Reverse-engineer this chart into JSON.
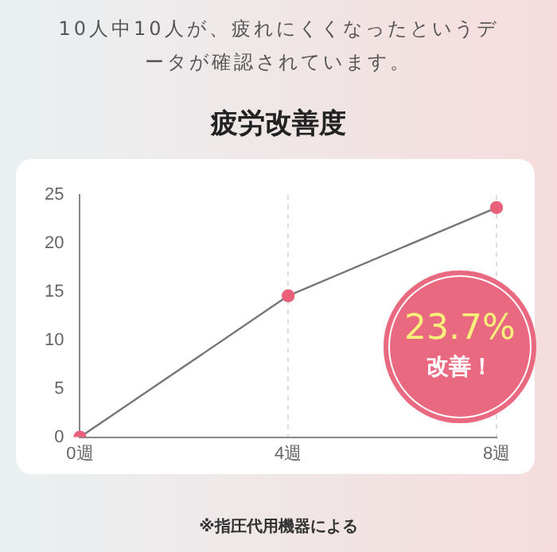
{
  "chart_data": {
    "type": "line",
    "title": "疲労改善度",
    "subtitle": "10人中10人が、疲れにくくなったというデータが確認されています。",
    "categories": [
      "0週",
      "4週",
      "8週"
    ],
    "series": [
      {
        "color": "#777777",
        "colors": [
          "#e8607a",
          "#e8607a",
          "#e8607a"
        ],
        "values": [
          0,
          14.6,
          23.7
        ]
      }
    ],
    "ylim": [
      0,
      25
    ],
    "yticks": [
      0,
      5,
      10,
      15,
      20,
      25
    ],
    "grid": "x",
    "legend": false,
    "marker": "circle",
    "line_style": "solid",
    "annotations": [
      "23.7%",
      "改善！",
      "※指圧代用機器による"
    ]
  }
}
